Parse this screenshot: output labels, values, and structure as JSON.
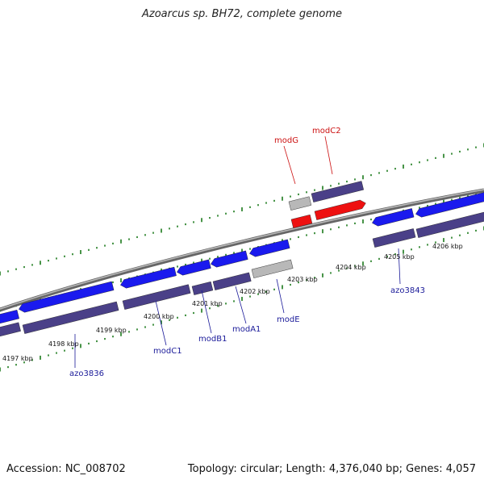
{
  "title": "Azoarcus sp. BH72, complete genome",
  "footer": {
    "accession": "Accession: NC_008702",
    "summary": "Topology: circular; Length: 4,376,040 bp; Genes: 4,057"
  },
  "colors": {
    "backbone": "#888888",
    "tick_dots": "#1a7a1a",
    "gene_blue": "#1a1aee",
    "gene_navy": "#4a4088",
    "gene_red": "#ee1111",
    "gene_gray": "#b8b8b8",
    "label_blue": "#1a1a99",
    "label_red": "#cc1111"
  },
  "tick_labels": [
    "4197 kbp",
    "4198 kbp",
    "4199 kbp",
    "4200 kbp",
    "4201 kbp",
    "4202 kbp",
    "4203 kbp",
    "4204 kbp",
    "4205 kbp",
    "4206 kbp"
  ],
  "gene_labels": [
    {
      "name": "azo3836",
      "color": "blue"
    },
    {
      "name": "modC1",
      "color": "blue"
    },
    {
      "name": "modB1",
      "color": "blue"
    },
    {
      "name": "modA1",
      "color": "blue"
    },
    {
      "name": "modE",
      "color": "blue"
    },
    {
      "name": "azo3843",
      "color": "blue"
    },
    {
      "name": "modG",
      "color": "red"
    },
    {
      "name": "modC2",
      "color": "red"
    }
  ]
}
